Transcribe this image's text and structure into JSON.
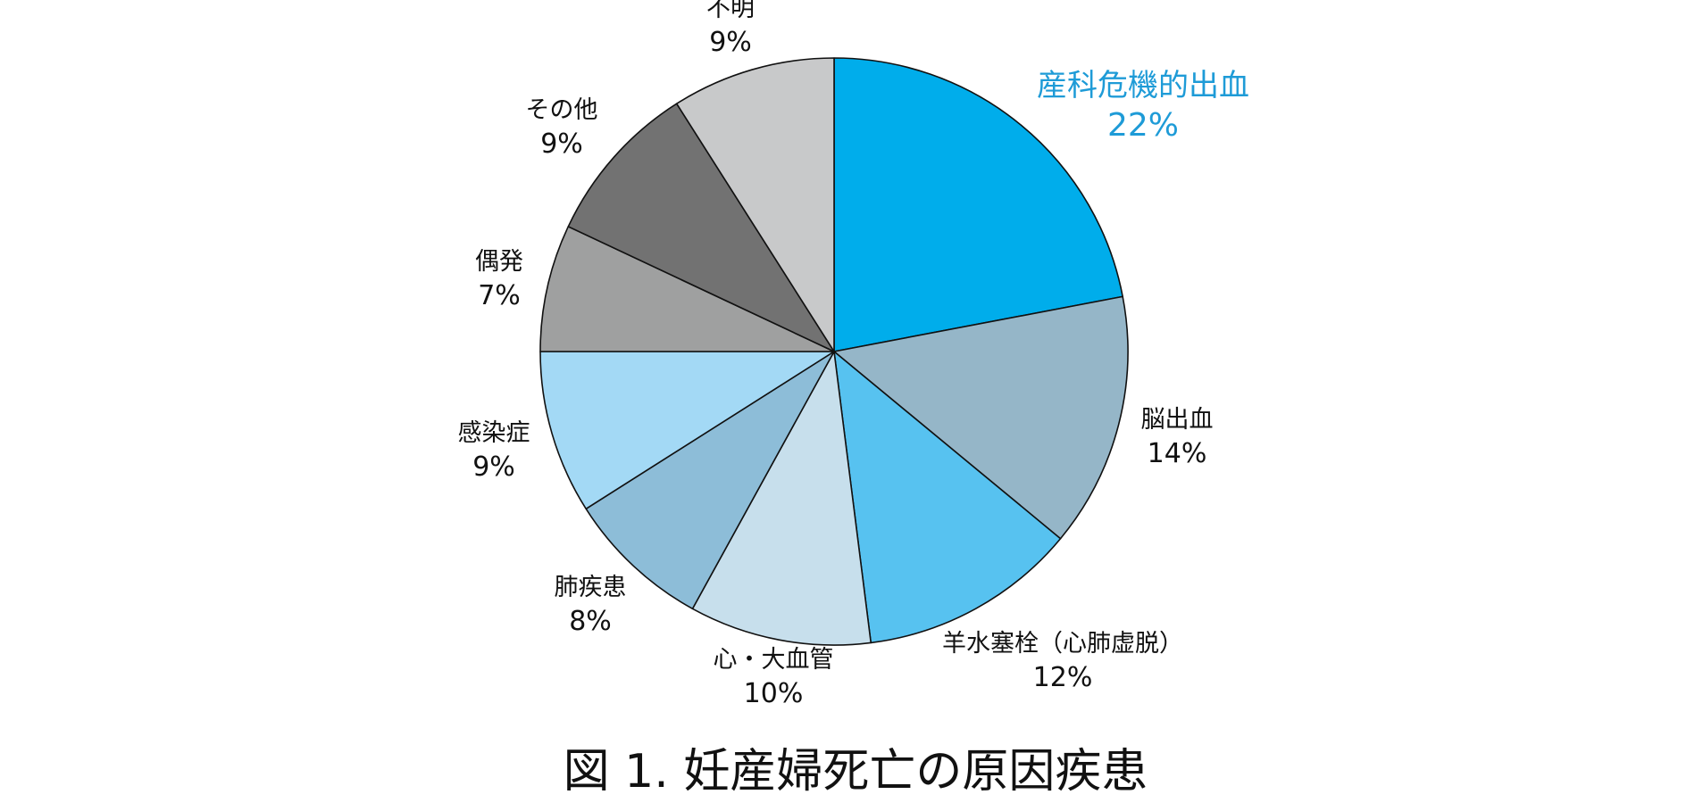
{
  "chart_data": {
    "type": "pie",
    "title": "図 1.  妊産婦死亡の原因疾患",
    "unit": "%",
    "start": "12 o'clock",
    "direction": "clockwise",
    "slices": [
      {
        "label": "産科危機的出血",
        "value": 22,
        "value_label": "22%",
        "color": "#00adeb",
        "highlight": true
      },
      {
        "label": "脳出血",
        "value": 14,
        "value_label": "14%",
        "color": "#95b6c8",
        "highlight": false
      },
      {
        "label": "羊水塞栓（心肺虚脱）",
        "value": 12,
        "value_label": "12%",
        "color": "#57c2f0",
        "highlight": false
      },
      {
        "label": "心・大血管",
        "value": 10,
        "value_label": "10%",
        "color": "#c7dfec",
        "highlight": false
      },
      {
        "label": "肺疾患",
        "value": 8,
        "value_label": "8%",
        "color": "#8dbdd8",
        "highlight": false
      },
      {
        "label": "感染症",
        "value": 9,
        "value_label": "9%",
        "color": "#a3d9f5",
        "highlight": false
      },
      {
        "label": "偶発",
        "value": 7,
        "value_label": "7%",
        "color": "#9fa0a0",
        "highlight": false
      },
      {
        "label": "その他",
        "value": 9,
        "value_label": "9%",
        "color": "#727272",
        "highlight": false
      },
      {
        "label": "不明",
        "value": 9,
        "value_label": "9%",
        "color": "#c8c9ca",
        "highlight": false
      }
    ]
  }
}
